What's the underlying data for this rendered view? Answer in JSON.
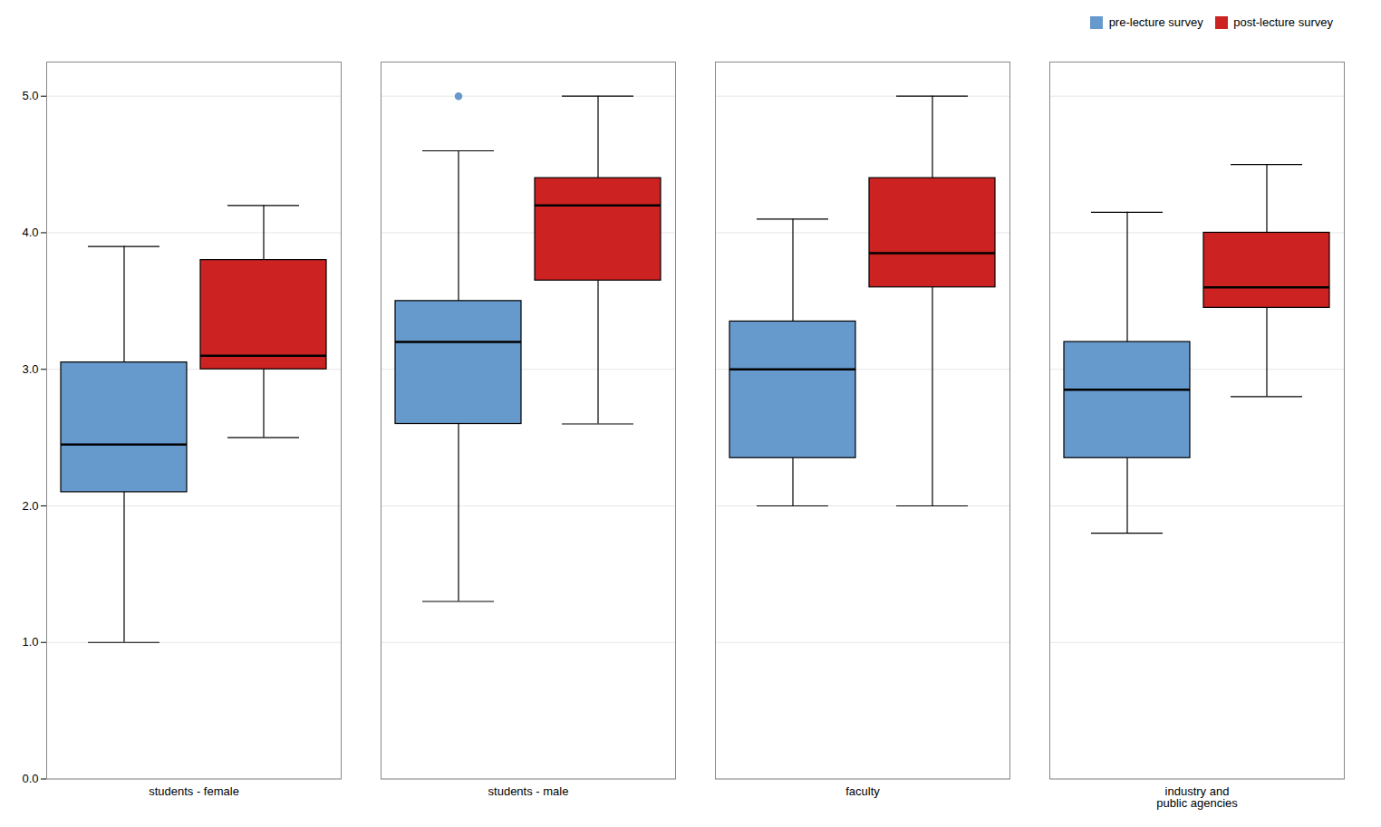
{
  "chart_data": {
    "type": "box",
    "categories": [
      "students - female",
      "students - male",
      "faculty",
      "industry and\npublic agencies"
    ],
    "series": [
      {
        "name": "pre-lecture survey",
        "color": "#6699CC",
        "values": [
          {
            "whislo": 1.0,
            "q1": 2.1,
            "med": 2.45,
            "q3": 3.05,
            "whishi": 3.9,
            "fliers": []
          },
          {
            "whislo": 1.3,
            "q1": 2.6,
            "med": 3.2,
            "q3": 3.5,
            "whishi": 4.6,
            "fliers": [
              5.0
            ]
          },
          {
            "whislo": 2.0,
            "q1": 2.35,
            "med": 3.0,
            "q3": 3.35,
            "whishi": 4.1,
            "fliers": []
          },
          {
            "whislo": 1.8,
            "q1": 2.35,
            "med": 2.85,
            "q3": 3.2,
            "whishi": 4.15,
            "fliers": []
          }
        ]
      },
      {
        "name": "post-lecture survey",
        "color": "#CC2222",
        "values": [
          {
            "whislo": 2.5,
            "q1": 3.0,
            "med": 3.1,
            "q3": 3.8,
            "whishi": 4.2,
            "fliers": []
          },
          {
            "whislo": 2.6,
            "q1": 3.65,
            "med": 4.2,
            "q3": 4.4,
            "whishi": 5.0,
            "fliers": []
          },
          {
            "whislo": 2.0,
            "q1": 3.6,
            "med": 3.85,
            "q3": 4.4,
            "whishi": 5.0,
            "fliers": []
          },
          {
            "whislo": 2.8,
            "q1": 3.45,
            "med": 3.6,
            "q3": 4.0,
            "whishi": 4.5,
            "fliers": []
          }
        ]
      }
    ],
    "ylim": [
      0,
      5.25
    ],
    "yticks": [
      0,
      1,
      2,
      3,
      4,
      5
    ],
    "grid": true,
    "legend": "upper right"
  }
}
